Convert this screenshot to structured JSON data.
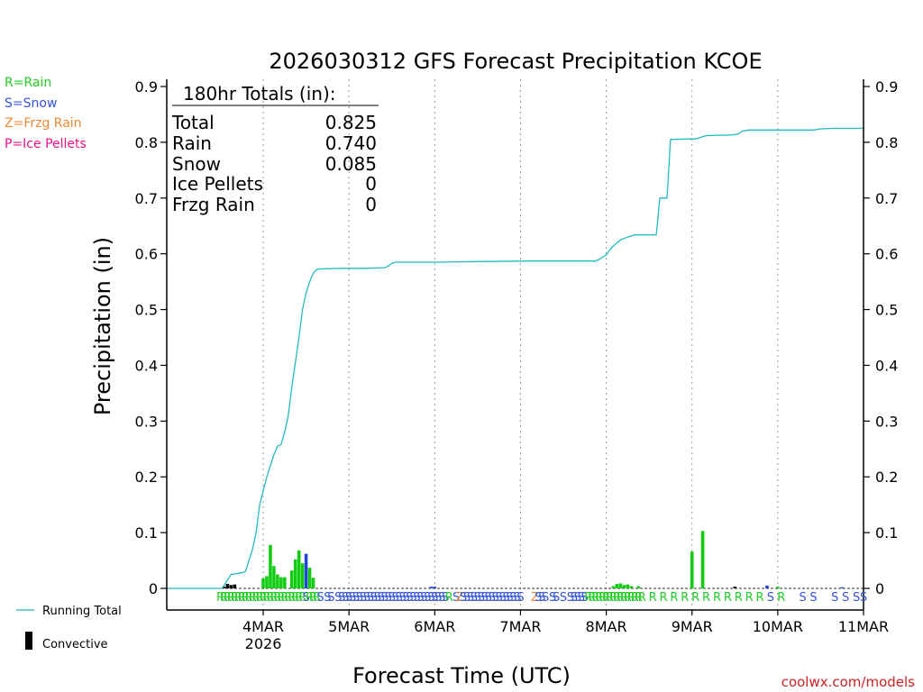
{
  "chart_data": {
    "type": "bar",
    "title": "2026030312 GFS Forecast Precipitation KCOE",
    "xlabel": "Forecast Time (UTC)",
    "ylabel": "Precipitation (in)",
    "ylim": [
      0,
      0.9
    ],
    "y_ticks": [
      "0",
      "0.1",
      "0.2",
      "0.3",
      "0.4",
      "0.5",
      "0.6",
      "0.7",
      "0.8",
      "0.9"
    ],
    "x_range_hours": [
      -15,
      180
    ],
    "x_ticks": [
      {
        "hour": 12,
        "label": "4MAR",
        "sub": "2026"
      },
      {
        "hour": 36,
        "label": "5MAR",
        "sub": ""
      },
      {
        "hour": 60,
        "label": "6MAR",
        "sub": ""
      },
      {
        "hour": 84,
        "label": "7MAR",
        "sub": ""
      },
      {
        "hour": 108,
        "label": "8MAR",
        "sub": ""
      },
      {
        "hour": 132,
        "label": "9MAR",
        "sub": ""
      },
      {
        "hour": 156,
        "label": "10MAR",
        "sub": ""
      },
      {
        "hour": 180,
        "label": "11MAR",
        "sub": ""
      }
    ],
    "legend": [
      {
        "text": "R=Rain",
        "color": "#22cc22"
      },
      {
        "text": "S=Snow",
        "color": "#3355dd"
      },
      {
        "text": "Z=Frzg Rain",
        "color": "#ee8833"
      },
      {
        "text": "P=Ice Pellets",
        "color": "#ee1188"
      }
    ],
    "line_legend": "Running Total",
    "bar_legend": "Convective",
    "totals": {
      "header": "180hr Totals (in):",
      "rows": [
        {
          "label": "Total",
          "value": "0.825"
        },
        {
          "label": "Rain",
          "value": "0.740"
        },
        {
          "label": "Snow",
          "value": "0.085"
        },
        {
          "label": "Ice Pellets",
          "value": "0"
        },
        {
          "label": "Frzg Rain",
          "value": "0"
        }
      ]
    },
    "credit": "coolwx.com/models",
    "colors": {
      "line": "#22bbbb",
      "rain": "#11cc11",
      "snow": "#2244dd",
      "convective": "#000000",
      "grid": "#999999",
      "credit": "#cc2222",
      "frzg": "#ee8833"
    },
    "running_total": [
      [
        -15,
        0
      ],
      [
        0,
        0
      ],
      [
        0.5,
        0
      ],
      [
        1,
        0.005
      ],
      [
        2,
        0.015
      ],
      [
        3,
        0.025
      ],
      [
        6,
        0.028
      ],
      [
        7,
        0.03
      ],
      [
        8,
        0.05
      ],
      [
        9,
        0.07
      ],
      [
        10,
        0.1
      ],
      [
        11,
        0.15
      ],
      [
        12,
        0.175
      ],
      [
        13,
        0.2
      ],
      [
        14,
        0.22
      ],
      [
        15,
        0.24
      ],
      [
        16,
        0.255
      ],
      [
        17,
        0.258
      ],
      [
        18,
        0.28
      ],
      [
        19,
        0.31
      ],
      [
        20,
        0.36
      ],
      [
        21,
        0.405
      ],
      [
        22,
        0.45
      ],
      [
        23,
        0.5
      ],
      [
        24,
        0.53
      ],
      [
        25,
        0.55
      ],
      [
        26,
        0.565
      ],
      [
        27,
        0.572
      ],
      [
        28,
        0.573
      ],
      [
        34,
        0.574
      ],
      [
        40,
        0.574
      ],
      [
        46,
        0.575
      ],
      [
        47,
        0.578
      ],
      [
        48,
        0.583
      ],
      [
        49,
        0.585
      ],
      [
        60,
        0.585
      ],
      [
        72,
        0.586
      ],
      [
        86,
        0.587
      ],
      [
        96,
        0.587
      ],
      [
        105,
        0.587
      ],
      [
        106,
        0.59
      ],
      [
        108,
        0.598
      ],
      [
        109,
        0.607
      ],
      [
        110,
        0.614
      ],
      [
        112,
        0.625
      ],
      [
        114,
        0.63
      ],
      [
        116,
        0.634
      ],
      [
        122,
        0.634
      ],
      [
        123,
        0.7
      ],
      [
        125,
        0.7
      ],
      [
        126,
        0.805
      ],
      [
        131,
        0.806
      ],
      [
        133,
        0.806
      ],
      [
        136,
        0.812
      ],
      [
        143,
        0.813
      ],
      [
        145,
        0.815
      ],
      [
        146,
        0.82
      ],
      [
        148,
        0.822
      ],
      [
        166,
        0.822
      ],
      [
        168,
        0.824
      ],
      [
        172,
        0.825
      ],
      [
        180,
        0.825
      ]
    ],
    "bars": [
      {
        "hour": 1,
        "value": 0.003,
        "type": "convective"
      },
      {
        "hour": 2,
        "value": 0.008,
        "type": "convective"
      },
      {
        "hour": 3,
        "value": 0.006,
        "type": "convective"
      },
      {
        "hour": 4,
        "value": 0.007,
        "type": "convective"
      },
      {
        "hour": 12,
        "value": 0.018,
        "type": "rain"
      },
      {
        "hour": 13,
        "value": 0.022,
        "type": "rain"
      },
      {
        "hour": 14,
        "value": 0.078,
        "type": "rain"
      },
      {
        "hour": 15,
        "value": 0.04,
        "type": "rain"
      },
      {
        "hour": 16,
        "value": 0.025,
        "type": "rain"
      },
      {
        "hour": 17,
        "value": 0.02,
        "type": "rain"
      },
      {
        "hour": 18,
        "value": 0.02,
        "type": "rain"
      },
      {
        "hour": 20,
        "value": 0.032,
        "type": "rain"
      },
      {
        "hour": 21,
        "value": 0.052,
        "type": "rain"
      },
      {
        "hour": 22,
        "value": 0.068,
        "type": "rain"
      },
      {
        "hour": 23,
        "value": 0.045,
        "type": "rain"
      },
      {
        "hour": 24,
        "value": 0.062,
        "type": "snow"
      },
      {
        "hour": 25,
        "value": 0.037,
        "type": "rain"
      },
      {
        "hour": 26,
        "value": 0.019,
        "type": "rain"
      },
      {
        "hour": 59,
        "value": 0.003,
        "type": "snow"
      },
      {
        "hour": 60,
        "value": 0.003,
        "type": "snow"
      },
      {
        "hour": 110,
        "value": 0.004,
        "type": "rain"
      },
      {
        "hour": 111,
        "value": 0.008,
        "type": "rain"
      },
      {
        "hour": 112,
        "value": 0.009,
        "type": "rain"
      },
      {
        "hour": 113,
        "value": 0.006,
        "type": "rain"
      },
      {
        "hour": 114,
        "value": 0.007,
        "type": "rain"
      },
      {
        "hour": 115,
        "value": 0.004,
        "type": "rain"
      },
      {
        "hour": 117,
        "value": 0.004,
        "type": "rain"
      },
      {
        "hour": 132,
        "value": 0.066,
        "type": "rain"
      },
      {
        "hour": 135,
        "value": 0.103,
        "type": "rain"
      },
      {
        "hour": 144,
        "value": 0.003,
        "type": "convective"
      },
      {
        "hour": 153,
        "value": 0.005,
        "type": "snow"
      },
      {
        "hour": 156,
        "value": 0.003,
        "type": "rain"
      },
      {
        "hour": 174,
        "value": 0.002,
        "type": "snow"
      }
    ],
    "ptype_markers": [
      {
        "hour": 0,
        "code": "R"
      },
      {
        "hour": 1,
        "code": "R"
      },
      {
        "hour": 2,
        "code": "R"
      },
      {
        "hour": 3,
        "code": "R"
      },
      {
        "hour": 4,
        "code": "R"
      },
      {
        "hour": 5,
        "code": "R"
      },
      {
        "hour": 6,
        "code": "R"
      },
      {
        "hour": 7,
        "code": "R"
      },
      {
        "hour": 8,
        "code": "R"
      },
      {
        "hour": 9,
        "code": "R"
      },
      {
        "hour": 10,
        "code": "R"
      },
      {
        "hour": 11,
        "code": "R"
      },
      {
        "hour": 12,
        "code": "R"
      },
      {
        "hour": 13,
        "code": "R"
      },
      {
        "hour": 14,
        "code": "R"
      },
      {
        "hour": 15,
        "code": "R"
      },
      {
        "hour": 16,
        "code": "R"
      },
      {
        "hour": 17,
        "code": "R"
      },
      {
        "hour": 18,
        "code": "R"
      },
      {
        "hour": 19,
        "code": "R"
      },
      {
        "hour": 20,
        "code": "R"
      },
      {
        "hour": 21,
        "code": "R"
      },
      {
        "hour": 22,
        "code": "R"
      },
      {
        "hour": 23,
        "code": "R"
      },
      {
        "hour": 24,
        "code": "S"
      },
      {
        "hour": 25,
        "code": "R"
      },
      {
        "hour": 26,
        "code": "R"
      },
      {
        "hour": 27,
        "code": "R"
      },
      {
        "hour": 28,
        "code": "S"
      },
      {
        "hour": 30,
        "code": "S"
      },
      {
        "hour": 31,
        "code": "S"
      },
      {
        "hour": 33,
        "code": "S"
      },
      {
        "hour": 34,
        "code": "S"
      },
      {
        "hour": 35,
        "code": "S"
      },
      {
        "hour": 36,
        "code": "S"
      },
      {
        "hour": 37,
        "code": "S"
      },
      {
        "hour": 38,
        "code": "S"
      },
      {
        "hour": 39,
        "code": "S"
      },
      {
        "hour": 40,
        "code": "S"
      },
      {
        "hour": 41,
        "code": "S"
      },
      {
        "hour": 42,
        "code": "S"
      },
      {
        "hour": 43,
        "code": "S"
      },
      {
        "hour": 44,
        "code": "S"
      },
      {
        "hour": 45,
        "code": "S"
      },
      {
        "hour": 46,
        "code": "S"
      },
      {
        "hour": 47,
        "code": "S"
      },
      {
        "hour": 48,
        "code": "S"
      },
      {
        "hour": 49,
        "code": "S"
      },
      {
        "hour": 50,
        "code": "S"
      },
      {
        "hour": 51,
        "code": "S"
      },
      {
        "hour": 52,
        "code": "S"
      },
      {
        "hour": 53,
        "code": "S"
      },
      {
        "hour": 54,
        "code": "S"
      },
      {
        "hour": 55,
        "code": "S"
      },
      {
        "hour": 56,
        "code": "S"
      },
      {
        "hour": 57,
        "code": "S"
      },
      {
        "hour": 58,
        "code": "S"
      },
      {
        "hour": 59,
        "code": "S"
      },
      {
        "hour": 60,
        "code": "S"
      },
      {
        "hour": 61,
        "code": "S"
      },
      {
        "hour": 62,
        "code": "S"
      },
      {
        "hour": 63,
        "code": "S"
      },
      {
        "hour": 64,
        "code": "R"
      },
      {
        "hour": 66,
        "code": "S"
      },
      {
        "hour": 67,
        "code": "Z"
      },
      {
        "hour": 68,
        "code": "S"
      },
      {
        "hour": 69,
        "code": "S"
      },
      {
        "hour": 70,
        "code": "S"
      },
      {
        "hour": 71,
        "code": "S"
      },
      {
        "hour": 72,
        "code": "S"
      },
      {
        "hour": 73,
        "code": "S"
      },
      {
        "hour": 74,
        "code": "S"
      },
      {
        "hour": 75,
        "code": "S"
      },
      {
        "hour": 76,
        "code": "S"
      },
      {
        "hour": 77,
        "code": "S"
      },
      {
        "hour": 78,
        "code": "S"
      },
      {
        "hour": 79,
        "code": "S"
      },
      {
        "hour": 80,
        "code": "S"
      },
      {
        "hour": 81,
        "code": "S"
      },
      {
        "hour": 82,
        "code": "S"
      },
      {
        "hour": 83,
        "code": "S"
      },
      {
        "hour": 84,
        "code": "S"
      },
      {
        "hour": 88,
        "code": "Z"
      },
      {
        "hour": 89,
        "code": "S"
      },
      {
        "hour": 90,
        "code": "S"
      },
      {
        "hour": 91,
        "code": "S"
      },
      {
        "hour": 93,
        "code": "S"
      },
      {
        "hour": 94,
        "code": "S"
      },
      {
        "hour": 96,
        "code": "S"
      },
      {
        "hour": 98,
        "code": "S"
      },
      {
        "hour": 99,
        "code": "S"
      },
      {
        "hour": 100,
        "code": "S"
      },
      {
        "hour": 101,
        "code": "S"
      },
      {
        "hour": 102,
        "code": "S"
      },
      {
        "hour": 103,
        "code": "R"
      },
      {
        "hour": 104,
        "code": "R"
      },
      {
        "hour": 105,
        "code": "R"
      },
      {
        "hour": 106,
        "code": "R"
      },
      {
        "hour": 107,
        "code": "R"
      },
      {
        "hour": 108,
        "code": "R"
      },
      {
        "hour": 109,
        "code": "R"
      },
      {
        "hour": 110,
        "code": "R"
      },
      {
        "hour": 111,
        "code": "R"
      },
      {
        "hour": 112,
        "code": "R"
      },
      {
        "hour": 113,
        "code": "R"
      },
      {
        "hour": 114,
        "code": "R"
      },
      {
        "hour": 115,
        "code": "R"
      },
      {
        "hour": 116,
        "code": "R"
      },
      {
        "hour": 117,
        "code": "R"
      },
      {
        "hour": 118,
        "code": "R"
      },
      {
        "hour": 121,
        "code": "R"
      },
      {
        "hour": 124,
        "code": "R"
      },
      {
        "hour": 127,
        "code": "R"
      },
      {
        "hour": 130,
        "code": "R"
      },
      {
        "hour": 133,
        "code": "R"
      },
      {
        "hour": 136,
        "code": "R"
      },
      {
        "hour": 139,
        "code": "R"
      },
      {
        "hour": 142,
        "code": "R"
      },
      {
        "hour": 145,
        "code": "R"
      },
      {
        "hour": 148,
        "code": "R"
      },
      {
        "hour": 151,
        "code": "R"
      },
      {
        "hour": 154,
        "code": "S"
      },
      {
        "hour": 157,
        "code": "R"
      },
      {
        "hour": 163,
        "code": "S"
      },
      {
        "hour": 166,
        "code": "S"
      },
      {
        "hour": 172,
        "code": "S"
      },
      {
        "hour": 175,
        "code": "S"
      },
      {
        "hour": 178,
        "code": "S"
      },
      {
        "hour": 180,
        "code": "S"
      }
    ]
  }
}
